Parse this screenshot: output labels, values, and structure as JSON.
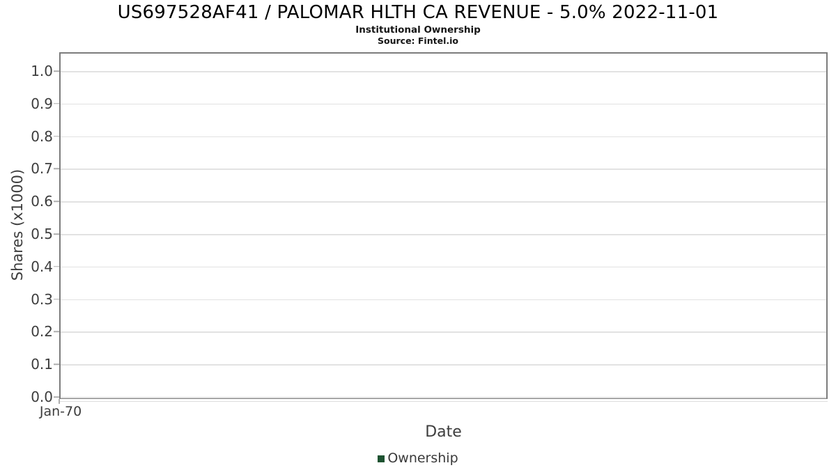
{
  "chart_data": {
    "type": "line",
    "title": "US697528AF41 / PALOMAR HLTH CA REVENUE - 5.0% 2022-11-01",
    "subtitle": "Institutional Ownership",
    "source": "Source: Fintel.io",
    "xlabel": "Date",
    "ylabel": "Shares (x1000)",
    "ylim": [
      0.0,
      1.05
    ],
    "grid": "horizontal-only",
    "legend_position": "bottom-center",
    "xticks": [
      "Jan-70"
    ],
    "yticks": [
      {
        "value": 0.0,
        "label": "0.0"
      },
      {
        "value": 0.1,
        "label": "0.1"
      },
      {
        "value": 0.2,
        "label": "0.2"
      },
      {
        "value": 0.3,
        "label": "0.3"
      },
      {
        "value": 0.4,
        "label": "0.4"
      },
      {
        "value": 0.5,
        "label": "0.5"
      },
      {
        "value": 0.6,
        "label": "0.6"
      },
      {
        "value": 0.7,
        "label": "0.7"
      },
      {
        "value": 0.8,
        "label": "0.8"
      },
      {
        "value": 0.9,
        "label": "0.9"
      },
      {
        "value": 1.0,
        "label": "1.0"
      }
    ],
    "legend": [
      {
        "label": "Ownership",
        "color": "#1d5331"
      }
    ],
    "series": [
      {
        "name": "Ownership",
        "color": "#1d5331",
        "x": [],
        "values": []
      }
    ],
    "colors": {
      "title": "#000000",
      "text": "#3d3d3d",
      "border": "#7c7c7c",
      "grid": "#e2e2e2",
      "tick": "#adadad",
      "series_green": "#1d5331"
    }
  }
}
